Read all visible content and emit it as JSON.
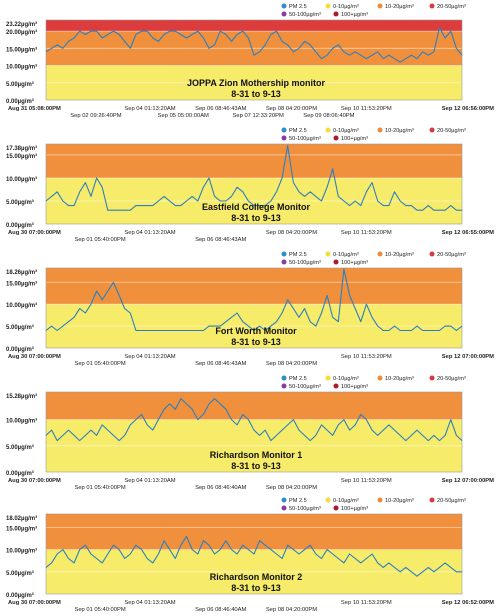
{
  "legend": {
    "items": [
      {
        "label": "PM 2.5",
        "color": "#2b8fc8",
        "kind": "series"
      },
      {
        "label": "0-10µg/m³",
        "color": "#f2dd3a",
        "kind": "band"
      },
      {
        "label": "10-20µg/m³",
        "color": "#f08a3c",
        "kind": "band"
      },
      {
        "label": "20-50µg/m³",
        "color": "#d83a3a",
        "kind": "band"
      },
      {
        "label": "50-100µg/m³",
        "color": "#8a3aa0",
        "kind": "band"
      },
      {
        "label": "100+µg/m³",
        "color": "#b0182a",
        "kind": "band"
      }
    ]
  },
  "colors": {
    "band_0_10": "#f6ec6a",
    "band_10_20": "#f0903c",
    "band_20_50": "#dc3c3c",
    "series": "#2b7fc0",
    "grid": "#ffffff"
  },
  "chart_data": [
    {
      "type": "line",
      "title": "JOPPA Zion Mothership monitor",
      "subtitle": "8-31 to 9-13",
      "series_name": "PM 2.5",
      "ylim": [
        0,
        23.22
      ],
      "y_ticks": [
        "23.22µg/m³",
        "20.00µg/m³",
        "15.00µg/m³",
        "10.00µg/m³",
        "5.00µg/m³",
        "0.00µg/m³"
      ],
      "y_tick_values": [
        23.22,
        20,
        15,
        10,
        5,
        0
      ],
      "x_labels_row1": [
        "Aug 31 05:08:00PM",
        "Sep 04 01:13:20AM",
        "Sep 06 08:46:43AM",
        "Sep 08 04:20:00PM",
        "Sep 10 11:53:20PM",
        "Sep 12 06:56:00PM"
      ],
      "x_labels_row2": [
        "Sep 02 09:26:40PM",
        "Sep 05 05:00:00AM",
        "Sep 07 12:33:20PM",
        "Sep 09 08:06:40PM"
      ],
      "x_label_pos_row1": [
        0.0,
        0.25,
        0.42,
        0.59,
        0.77,
        1.0
      ],
      "x_label_pos_row2": [
        0.12,
        0.33,
        0.51,
        0.68
      ],
      "values": [
        14,
        15,
        16,
        15,
        17,
        18,
        20,
        19,
        20,
        20,
        18,
        19,
        20,
        19,
        17,
        15,
        19,
        20,
        20,
        18,
        17,
        19,
        20,
        20,
        19,
        18,
        19,
        20,
        18,
        15,
        16,
        20,
        19,
        17,
        19,
        20,
        18,
        13,
        14,
        16,
        19,
        20,
        17,
        16,
        14,
        15,
        17,
        16,
        14,
        12,
        13,
        15,
        16,
        14,
        13,
        14,
        13,
        12,
        13,
        14,
        12,
        13,
        12,
        11,
        12,
        13,
        12,
        14,
        13,
        14,
        21,
        18,
        20,
        15,
        13
      ],
      "bands": [
        [
          0,
          10,
          "band_0_10"
        ],
        [
          10,
          20,
          "band_10_20"
        ],
        [
          20,
          23.22,
          "band_20_50"
        ]
      ]
    },
    {
      "type": "line",
      "title": "Eastfield College Monitor",
      "subtitle": "8-31 to 9-13",
      "series_name": "PM 2.5",
      "ylim": [
        0,
        17.38
      ],
      "y_ticks": [
        "17.38µg/m³",
        "15.00µg/m³",
        "10.00µg/m³",
        "5.00µg/m³",
        "0.00µg/m³"
      ],
      "y_tick_values": [
        17.38,
        15,
        10,
        5,
        0
      ],
      "x_labels_row1": [
        "Aug 30 07:00:00PM",
        "Sep 04 01:13:20AM",
        "Sep 08 04:20:00PM",
        "Sep 10 11:53:20PM",
        "Sep 12 06:55:00PM"
      ],
      "x_labels_row2": [
        "Sep 01 05:40:00PM",
        "Sep 06 08:46:43AM"
      ],
      "x_label_pos_row1": [
        0.0,
        0.25,
        0.59,
        0.77,
        1.0
      ],
      "x_label_pos_row2": [
        0.13,
        0.42
      ],
      "values": [
        5,
        6,
        7,
        5,
        4,
        4,
        7,
        9,
        6,
        10,
        8,
        3,
        3,
        3,
        3,
        3,
        4,
        4,
        4,
        4,
        5,
        6,
        5,
        4,
        4,
        5,
        6,
        5,
        8,
        10,
        6,
        5,
        5,
        6,
        8,
        7,
        5,
        4,
        4,
        4,
        5,
        7,
        10,
        17,
        9,
        7,
        6,
        7,
        6,
        5,
        8,
        12,
        6,
        5,
        4,
        5,
        4,
        7,
        9,
        5,
        4,
        4,
        7,
        5,
        4,
        4,
        3,
        3,
        4,
        3,
        3,
        3,
        4,
        3,
        3
      ],
      "bands": [
        [
          0,
          10,
          "band_0_10"
        ],
        [
          10,
          17.38,
          "band_10_20"
        ]
      ]
    },
    {
      "type": "line",
      "title": "Fort Worth Monitor",
      "subtitle": "8-31 to 9-13",
      "series_name": "PM 2.5",
      "ylim": [
        0,
        18.26
      ],
      "y_ticks": [
        "18.26µg/m³",
        "15.00µg/m³",
        "10.00µg/m³",
        "5.00µg/m³",
        "0.00µg/m³"
      ],
      "y_tick_values": [
        18.26,
        15,
        10,
        5,
        0
      ],
      "x_labels_row1": [
        "Aug 30 07:00:00PM",
        "Sep 04 01:13:20AM",
        "Sep 10 11:53:20PM",
        "Sep 12 07:00:00PM"
      ],
      "x_labels_row2": [
        "Sep 01 05:40:00PM",
        "Sep 06 08:46:43AM",
        "Sep 08 04:20:00PM"
      ],
      "x_label_pos_row1": [
        0.0,
        0.25,
        0.77,
        1.0
      ],
      "x_label_pos_row2": [
        0.13,
        0.42,
        0.59
      ],
      "values": [
        4,
        5,
        4,
        5,
        6,
        7,
        9,
        8,
        10,
        13,
        11,
        13,
        15,
        12,
        9,
        8,
        4,
        4,
        4,
        4,
        4,
        4,
        4,
        4,
        4,
        4,
        4,
        4,
        4,
        5,
        5,
        5,
        6,
        7,
        8,
        6,
        5,
        4,
        5,
        4,
        5,
        6,
        8,
        11,
        9,
        7,
        9,
        6,
        5,
        8,
        12,
        7,
        6,
        18,
        12,
        9,
        6,
        10,
        7,
        5,
        4,
        4,
        5,
        4,
        4,
        4,
        5,
        4,
        4,
        4,
        4,
        5,
        5,
        4,
        5
      ],
      "bands": [
        [
          0,
          10,
          "band_0_10"
        ],
        [
          10,
          18.26,
          "band_10_20"
        ]
      ]
    },
    {
      "type": "line",
      "title": "Richardson Monitor 1",
      "subtitle": "8-31 to 9-13",
      "series_name": "PM 2.5",
      "ylim": [
        0,
        15.28
      ],
      "y_ticks": [
        "15.28µg/m³",
        "10.00µg/m³",
        "5.00µg/m³",
        "0.00µg/m³"
      ],
      "y_tick_values": [
        15.28,
        10,
        5,
        0
      ],
      "x_labels_row1": [
        "Aug 30 07:00:00PM",
        "Sep 04 01:13:20AM",
        "Sep 10 11:53:20PM",
        "Sep 12 07:00:00PM"
      ],
      "x_labels_row2": [
        "Sep 01 05:40:00PM",
        "Sep 06 08:46:40AM",
        "Sep 08 04:20:00PM"
      ],
      "x_label_pos_row1": [
        0.0,
        0.25,
        0.77,
        1.0
      ],
      "x_label_pos_row2": [
        0.13,
        0.42,
        0.59
      ],
      "values": [
        7,
        8,
        6,
        7,
        8,
        7,
        6,
        7,
        8,
        7,
        9,
        8,
        7,
        6,
        7,
        9,
        10,
        11,
        9,
        8,
        10,
        12,
        13,
        12,
        14,
        13,
        12,
        10,
        11,
        13,
        14,
        13,
        12,
        10,
        9,
        11,
        10,
        8,
        7,
        8,
        6,
        7,
        8,
        9,
        10,
        8,
        7,
        6,
        7,
        9,
        8,
        7,
        9,
        10,
        8,
        9,
        11,
        10,
        8,
        7,
        8,
        9,
        8,
        7,
        6,
        7,
        8,
        7,
        6,
        7,
        6,
        7,
        10,
        7,
        6
      ],
      "bands": [
        [
          0,
          10,
          "band_0_10"
        ],
        [
          10,
          15.28,
          "band_10_20"
        ]
      ]
    },
    {
      "type": "line",
      "title": "Richardson Monitor 2",
      "subtitle": "8-31 to 9-13",
      "series_name": "PM 2.5",
      "ylim": [
        0,
        18.02
      ],
      "y_ticks": [
        "18.02µg/m³",
        "15.00µg/m³",
        "10.00µg/m³",
        "5.00µg/m³",
        "0.00µg/m³"
      ],
      "y_tick_values": [
        18.02,
        15,
        10,
        5,
        0
      ],
      "x_labels_row1": [
        "Aug 30 07:00:00PM",
        "Sep 04 01:13:20AM",
        "Sep 10 11:53:20PM",
        "Sep 12 06:52:00PM"
      ],
      "x_labels_row2": [
        "Sep 01 05:40:00PM",
        "Sep 06 08:46:40AM",
        "Sep 08 04:20:00PM"
      ],
      "x_label_pos_row1": [
        0.0,
        0.25,
        0.77,
        1.0
      ],
      "x_label_pos_row2": [
        0.13,
        0.42,
        0.59
      ],
      "values": [
        6,
        7,
        9,
        10,
        8,
        7,
        10,
        11,
        9,
        8,
        7,
        9,
        11,
        10,
        8,
        9,
        11,
        10,
        8,
        7,
        9,
        12,
        10,
        8,
        11,
        13,
        10,
        9,
        12,
        11,
        9,
        10,
        12,
        10,
        9,
        11,
        10,
        9,
        12,
        11,
        10,
        9,
        8,
        11,
        10,
        9,
        10,
        11,
        9,
        8,
        10,
        9,
        8,
        7,
        9,
        8,
        7,
        8,
        9,
        7,
        6,
        7,
        6,
        5,
        6,
        5,
        4,
        5,
        6,
        5,
        6,
        7,
        6,
        5,
        5
      ],
      "bands": [
        [
          0,
          10,
          "band_0_10"
        ],
        [
          10,
          18.02,
          "band_10_20"
        ]
      ]
    }
  ]
}
